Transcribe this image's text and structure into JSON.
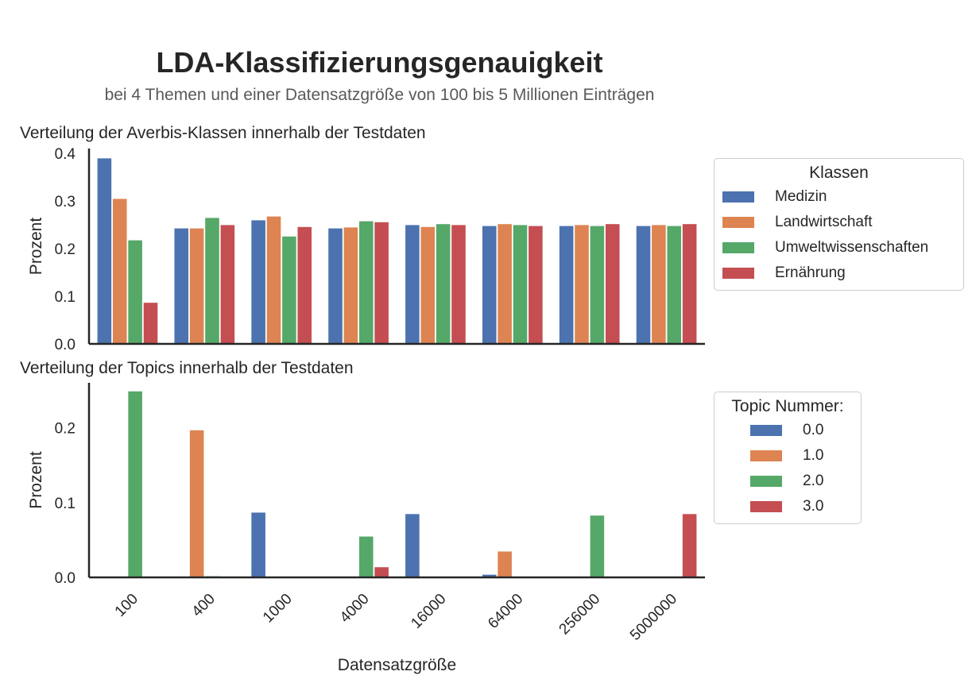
{
  "chart_data": [
    {
      "type": "bar",
      "title": "LDA-Klassifizierungsgenauigkeit",
      "subtitle": "bei 4 Themen und einer Datensatzgröße von 100 bis 5 Millionen Einträgen",
      "panel_title": "Verteilung der Averbis-Klassen innerhalb der Testdaten",
      "ylabel": "Prozent",
      "ylim": [
        0,
        0.41
      ],
      "yticks": [
        "0.0",
        "0.1",
        "0.2",
        "0.3",
        "0.4"
      ],
      "legend_title": "Klassen",
      "legend_position": "right",
      "categories": [
        "100",
        "400",
        "1000",
        "4000",
        "16000",
        "64000",
        "256000",
        "5000000"
      ],
      "series": [
        {
          "name": "Medizin",
          "color": "#4c72b0",
          "values": [
            0.39,
            0.243,
            0.26,
            0.243,
            0.25,
            0.248,
            0.248,
            0.248
          ]
        },
        {
          "name": "Landwirtschaft",
          "color": "#dd8452",
          "values": [
            0.305,
            0.243,
            0.268,
            0.245,
            0.246,
            0.252,
            0.25,
            0.25
          ]
        },
        {
          "name": "Umweltwissenschaften",
          "color": "#55a868",
          "values": [
            0.218,
            0.265,
            0.226,
            0.258,
            0.252,
            0.25,
            0.248,
            0.248
          ]
        },
        {
          "name": "Ernährung",
          "color": "#c44e52",
          "values": [
            0.087,
            0.25,
            0.246,
            0.256,
            0.25,
            0.248,
            0.252,
            0.252
          ]
        }
      ],
      "grid": false
    },
    {
      "type": "bar",
      "panel_title": "Verteilung der Topics innerhalb der Testdaten",
      "xlabel": "Datensatzgröße",
      "ylabel": "Prozent",
      "ylim": [
        0,
        0.26
      ],
      "yticks": [
        "0.0",
        "0.1",
        "0.2"
      ],
      "legend_title": "Topic Nummer:",
      "legend_position": "right",
      "categories": [
        "100",
        "400",
        "1000",
        "4000",
        "16000",
        "64000",
        "256000",
        "5000000"
      ],
      "series": [
        {
          "name": "0.0",
          "color": "#4c72b0",
          "values": [
            0,
            0,
            0.087,
            0,
            0.085,
            0.004,
            0,
            0
          ]
        },
        {
          "name": "1.0",
          "color": "#dd8452",
          "values": [
            0,
            0.197,
            0,
            0,
            0,
            0.035,
            0,
            0
          ]
        },
        {
          "name": "2.0",
          "color": "#55a868",
          "values": [
            0.249,
            0.002,
            0,
            0.055,
            0,
            0,
            0.083,
            0
          ]
        },
        {
          "name": "3.0",
          "color": "#c44e52",
          "values": [
            0,
            0,
            0,
            0.014,
            0,
            0,
            0,
            0.085
          ]
        }
      ],
      "grid": false
    }
  ]
}
